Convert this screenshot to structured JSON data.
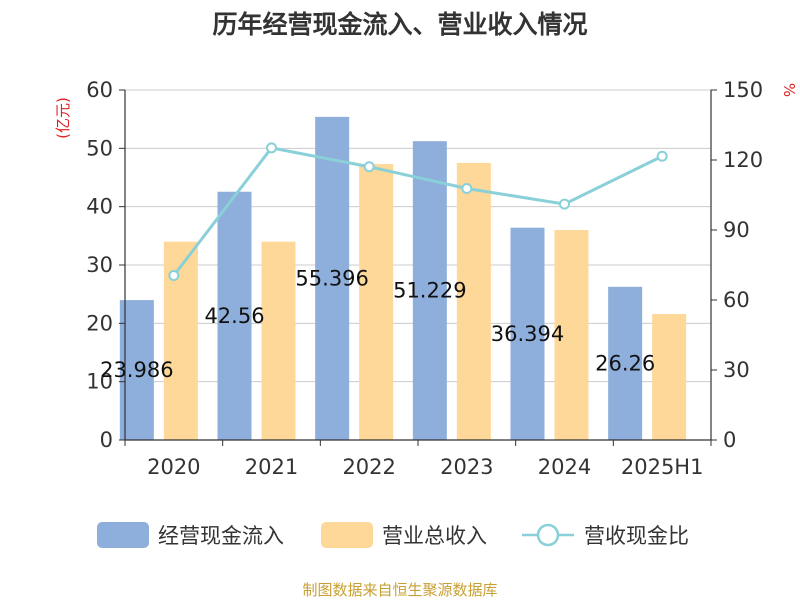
{
  "chart_data": {
    "type": "bar",
    "title": "历年经营现金流入、营业收入情况",
    "categories": [
      "2020",
      "2021",
      "2022",
      "2023",
      "2024",
      "2025H1"
    ],
    "series": [
      {
        "name": "经营现金流入",
        "type": "bar",
        "axis": "left",
        "color": "#8eaedc",
        "values": [
          23.986,
          42.56,
          55.396,
          51.229,
          36.394,
          26.26
        ],
        "labels": [
          "23.986",
          "42.56",
          "55.396",
          "51.229",
          "36.394",
          "26.26"
        ]
      },
      {
        "name": "营业总收入",
        "type": "bar",
        "axis": "left",
        "color": "#fdd898",
        "values": [
          34.0,
          34.0,
          47.3,
          47.5,
          36.0,
          21.6
        ]
      },
      {
        "name": "营收现金比",
        "type": "line",
        "axis": "right",
        "color": "#89d0d8",
        "values": [
          70.5,
          125.2,
          117.1,
          107.8,
          101.1,
          121.6
        ]
      }
    ],
    "left_axis": {
      "unit": "(亿元)",
      "ylim": [
        0,
        60
      ],
      "ticks": [
        "0",
        "10",
        "20",
        "30",
        "40",
        "50",
        "60"
      ]
    },
    "right_axis": {
      "unit": "%",
      "ylim": [
        0,
        150
      ],
      "ticks": [
        "0",
        "30",
        "60",
        "90",
        "120",
        "150"
      ]
    },
    "grid": true,
    "legend_position": "bottom",
    "source": "制图数据来自恒生聚源数据库"
  }
}
